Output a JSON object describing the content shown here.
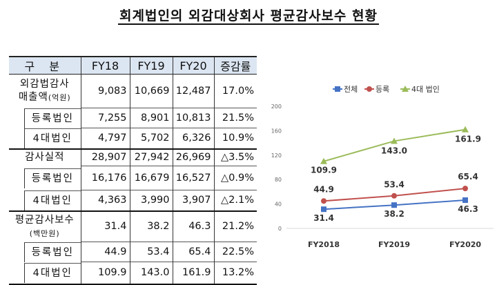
{
  "title": "회계법인의 외감대상회사 평균감사보수 현황",
  "table": {
    "headers": [
      "구 분",
      "FY18",
      "FY19",
      "FY20",
      "증감률"
    ],
    "rows": [
      {
        "label": "외감법감사",
        "label2": "매출액",
        "unit": "(억원)",
        "values": [
          "9,083",
          "10,669",
          "12,487",
          "17.0%"
        ]
      },
      {
        "label": "등록법인",
        "values": [
          "7,255",
          "8,901",
          "10,813",
          "21.5%"
        ]
      },
      {
        "label": "4대법인",
        "values": [
          "4,797",
          "5,702",
          "6,326",
          "10.9%"
        ]
      },
      {
        "label": "감사실적",
        "values": [
          "28,907",
          "27,942",
          "26,969",
          "△3.5%"
        ]
      },
      {
        "label": "등록법인",
        "values": [
          "16,176",
          "16,679",
          "16,527",
          "△0.9%"
        ]
      },
      {
        "label": "4대법인",
        "values": [
          "4,363",
          "3,990",
          "3,907",
          "△2.1%"
        ]
      },
      {
        "label": "평균감사보수",
        "unit": "(백만원)",
        "values": [
          "31.4",
          "38.2",
          "46.3",
          "21.2%"
        ]
      },
      {
        "label": "등록법인",
        "values": [
          "44.9",
          "53.4",
          "65.4",
          "22.5%"
        ]
      },
      {
        "label": "4대법인",
        "values": [
          "109.9",
          "143.0",
          "161.9",
          "13.2%"
        ]
      }
    ]
  },
  "chart_data": {
    "type": "line",
    "categories": [
      "FY2018",
      "FY2019",
      "FY2020"
    ],
    "ylim": [
      0,
      200
    ],
    "yticks": [
      "0",
      "40",
      "80",
      "120",
      "160",
      "200"
    ],
    "legend_position": "top",
    "grid": false,
    "series": [
      {
        "name": "전체",
        "values": [
          31.4,
          38.2,
          46.3
        ],
        "labels": [
          "31.4",
          "38.2",
          "46.3"
        ],
        "color": "#4472c4",
        "marker": "square"
      },
      {
        "name": "등록",
        "values": [
          44.9,
          53.4,
          65.4
        ],
        "labels": [
          "44.9",
          "53.4",
          "65.4"
        ],
        "color": "#c0504d",
        "marker": "circle"
      },
      {
        "name": "4대 법인",
        "values": [
          109.9,
          143.0,
          161.9
        ],
        "labels": [
          "109.9",
          "143.0",
          "161.9"
        ],
        "color": "#9bbb59",
        "marker": "triangle"
      }
    ]
  }
}
